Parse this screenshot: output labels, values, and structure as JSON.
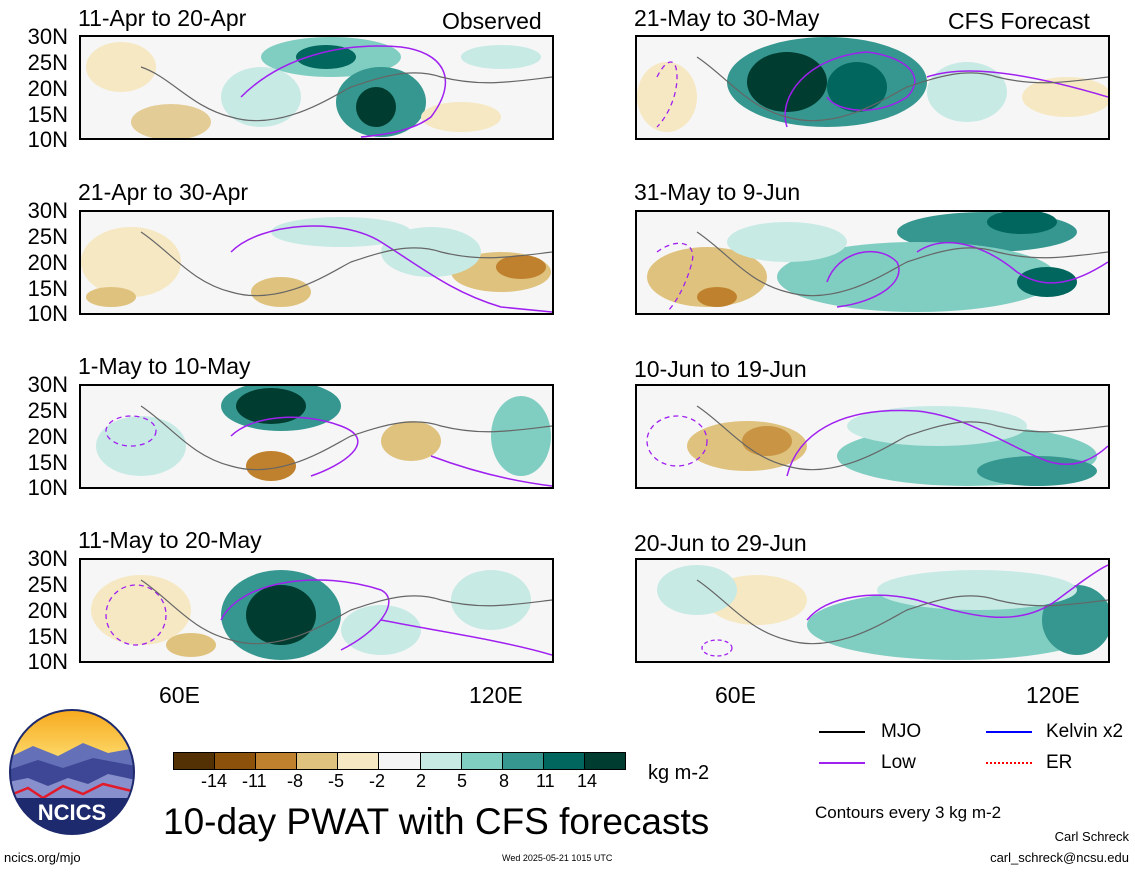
{
  "panels": [
    {
      "title": "11-Apr to 20-Apr",
      "tag": "Observed"
    },
    {
      "title": "21-May to 30-May",
      "tag": "CFS Forecast"
    },
    {
      "title": "21-Apr to 30-Apr",
      "tag": ""
    },
    {
      "title": "31-May to 9-Jun",
      "tag": ""
    },
    {
      "title": "1-May to 10-May",
      "tag": ""
    },
    {
      "title": "10-Jun to 19-Jun",
      "tag": ""
    },
    {
      "title": "11-May to 20-May",
      "tag": ""
    },
    {
      "title": "20-Jun to 29-Jun",
      "tag": ""
    }
  ],
  "lat_labels": [
    "30N",
    "25N",
    "20N",
    "15N",
    "10N"
  ],
  "lon_labels": [
    "60E",
    "120E"
  ],
  "colorbar": {
    "ticks": [
      "-14",
      "-11",
      "-8",
      "-5",
      "-2",
      "2",
      "5",
      "8",
      "11",
      "14"
    ],
    "units": "kg m-2",
    "colors": [
      "#543005",
      "#8c510a",
      "#bf812d",
      "#dfc27d",
      "#f6e8c3",
      "#f5f5f5",
      "#c7eae5",
      "#80cdc1",
      "#35978f",
      "#01665e",
      "#003c30"
    ]
  },
  "legend": {
    "items": [
      {
        "label": "MJO",
        "color": "#000000",
        "style": "solid"
      },
      {
        "label": "Kelvin x2",
        "color": "#0000ff",
        "style": "solid"
      },
      {
        "label": "Low",
        "color": "#a020f0",
        "style": "solid"
      },
      {
        "label": "ER",
        "color": "#ff0000",
        "style": "dotted"
      }
    ],
    "contour_note": "Contours every 3 kg m-2"
  },
  "logo_text": "NCICS",
  "main_title": "10-day PWAT with CFS forecasts",
  "footer": {
    "url": "ncics.org/mjo",
    "timestamp": "Wed 2025-05-21 1015 UTC",
    "author": "Carl Schreck",
    "email": "carl_schreck@ncsu.edu"
  }
}
